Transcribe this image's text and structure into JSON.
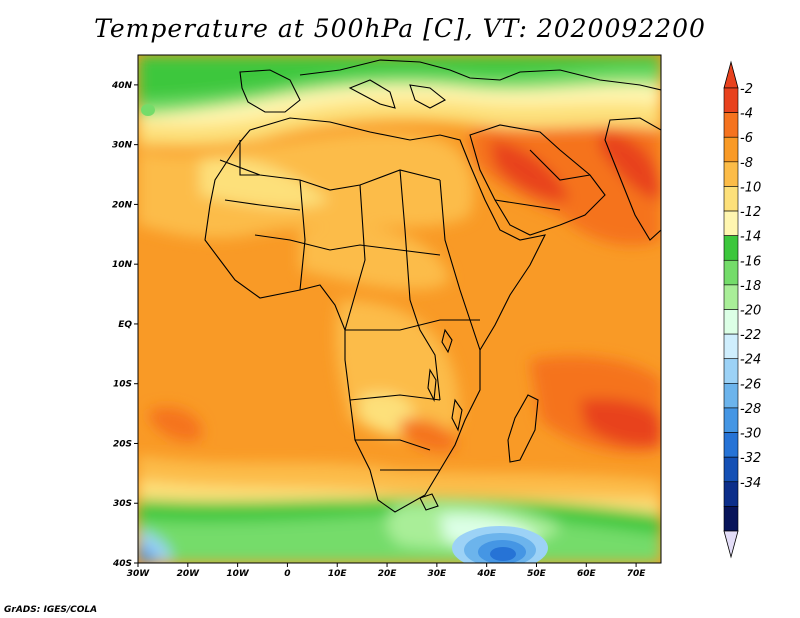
{
  "title": "Temperature at 500hPa [C], VT: 2020092200",
  "credit": "GrADS: IGES/COLA",
  "chart_data": {
    "type": "heatmap",
    "variable": "Temperature at 500hPa",
    "units": "C",
    "valid_time": "2020092200",
    "lon_range": [
      -30,
      75
    ],
    "lat_range": [
      -40,
      45
    ],
    "x_ticks": [
      "30W",
      "20W",
      "10W",
      "0",
      "10E",
      "20E",
      "30E",
      "40E",
      "50E",
      "60E",
      "70E"
    ],
    "y_ticks": [
      "40S",
      "30S",
      "20S",
      "10S",
      "EQ",
      "10N",
      "20N",
      "30N",
      "40N"
    ],
    "colorbar": {
      "labels": [
        "-2",
        "-4",
        "-6",
        "-8",
        "-10",
        "-12",
        "-14",
        "-16",
        "-18",
        "-20",
        "-22",
        "-24",
        "-26",
        "-28",
        "-30",
        "-32",
        "-34"
      ],
      "colors": [
        "#e8421e",
        "#f5731f",
        "#f99a26",
        "#fcbc48",
        "#fde07a",
        "#fff6b0",
        "#3cc73c",
        "#74dc6a",
        "#a9ee98",
        "#dcffe6",
        "#cfeefd",
        "#9cd2f6",
        "#6cb4ec",
        "#4596e4",
        "#2673d6",
        "#1450b5",
        "#0c2e8a",
        "#08145a"
      ],
      "top_arrow_color": "#e8421e",
      "bottom_arrow_color": "#e3ddf7"
    }
  }
}
